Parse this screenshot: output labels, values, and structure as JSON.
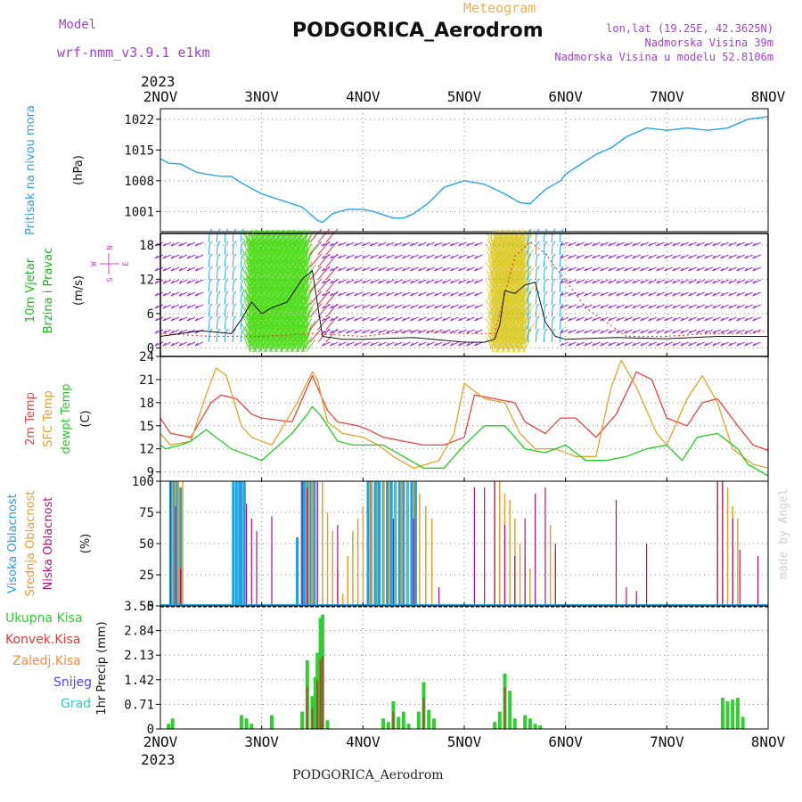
{
  "header": {
    "model_label": "Model",
    "model_value": "wrf-nmm_v3.9.1 e1km",
    "chart_kind": "Meteogram",
    "station": "PODGORICA_Aerodrom",
    "lonlat": "lon,lat (19.25E, 42.3625N)",
    "elevation": "Nadmorska Visina 39m",
    "model_elevation": "Nadmorska Visina u modelu 52.8106m",
    "credit": "made by Angel",
    "footer_station": "PODGORICA_Aerodrom"
  },
  "colors": {
    "pressure": "#29a3e6",
    "temp2m": "#ee4040",
    "sfc": "#e0a22a",
    "dew": "#22cc22",
    "high_cloud": "#1ba3e3",
    "mid_cloud": "#e0a22a",
    "low_cloud": "#b0127a",
    "precip_total": "#33cc33",
    "precip_convective": "#ee3333",
    "precip_frozen": "#ff8833",
    "snow": "#4444ff",
    "hail": "#22cccc",
    "wind_label": "#11bb11",
    "wind_dir_label": "#cc44cc",
    "header_purple": "#a040d0",
    "header_orange": "#f0b050"
  },
  "chart_data": [
    {
      "panel": "pressure",
      "type": "line",
      "ylabel": "Pritisak na nivou mora",
      "unit": "(hPa)",
      "year": "2023",
      "xticks": [
        "2NOV",
        "3NOV",
        "4NOV",
        "5NOV",
        "6NOV",
        "7NOV",
        "8NOV"
      ],
      "yticks": [
        1001,
        1008,
        1015,
        1022
      ],
      "ylim": [
        996.4,
        1024.4
      ],
      "grid": true,
      "series": [
        {
          "x": [
            0,
            0.08,
            0.2,
            0.35,
            0.45,
            0.6,
            0.7,
            0.8,
            1.0,
            1.2,
            1.4,
            1.55,
            1.6,
            1.7,
            1.85,
            2.0,
            2.1,
            2.3,
            2.4,
            2.5,
            2.65,
            2.8,
            3.0,
            3.2,
            3.4,
            3.55,
            3.65,
            3.8,
            3.95,
            4.0,
            4.1,
            4.3,
            4.45,
            4.6,
            4.8,
            5.0,
            5.2,
            5.4,
            5.6,
            5.8,
            6.0
          ],
          "values": [
            1013,
            1012,
            1011.8,
            1010,
            1009.5,
            1009,
            1009,
            1007.5,
            1005,
            1003.5,
            1002,
            999,
            998.5,
            1000.5,
            1001.5,
            1001.5,
            1001,
            999.5,
            999.5,
            1000.5,
            1003,
            1006.5,
            1008,
            1007.2,
            1005,
            1003,
            1002.8,
            1006,
            1008,
            1009.5,
            1011,
            1014,
            1015.5,
            1018,
            1020,
            1019.5,
            1020,
            1019.5,
            1020,
            1022,
            1022.6
          ]
        }
      ]
    },
    {
      "panel": "wind",
      "type": "line",
      "ylabel": "10m Vjetar Brzina i Pravac",
      "unit": "(m/s)",
      "compass": [
        "N",
        "S",
        "W",
        "E"
      ],
      "yticks": [
        0,
        6,
        12,
        18
      ],
      "ylim": [
        -1.5,
        20
      ],
      "series": [
        {
          "name": "speed",
          "x": [
            0,
            0.4,
            0.7,
            0.8,
            0.9,
            1.0,
            1.1,
            1.25,
            1.4,
            1.5,
            1.6,
            1.8,
            2.0,
            2.5,
            3.0,
            3.2,
            3.3,
            3.35,
            3.4,
            3.5,
            3.6,
            3.7,
            3.75,
            3.8,
            3.9,
            4.0,
            4.5,
            5.0,
            5.5,
            6.0
          ],
          "values": [
            2,
            3,
            2.5,
            5,
            8,
            6,
            7,
            8,
            12,
            13.5,
            2,
            1.5,
            1.5,
            1.8,
            1,
            1,
            1.5,
            4,
            10,
            9.5,
            11,
            11.5,
            8,
            4.5,
            2,
            1.5,
            1.8,
            1.6,
            2,
            2
          ]
        },
        {
          "name": "gust",
          "x": [
            0,
            0.5,
            1.0,
            1.5,
            2.0,
            2.5,
            3.0,
            3.3,
            3.5,
            3.65,
            3.8,
            4.2,
            4.6,
            5.0,
            5.4,
            5.8,
            6.0
          ],
          "values": [
            2.5,
            2,
            2,
            2.5,
            2,
            3,
            2.5,
            2.5,
            16,
            18.5,
            16.5,
            7,
            2,
            2,
            2.5,
            2.5,
            3
          ]
        }
      ],
      "barb_sections": [
        {
          "from": 0.0,
          "to": 0.45,
          "color": "violet"
        },
        {
          "from": 0.45,
          "to": 0.85,
          "color": "cyan"
        },
        {
          "from": 0.85,
          "to": 1.45,
          "color": "green"
        },
        {
          "from": 1.45,
          "to": 1.65,
          "color": "red"
        },
        {
          "from": 1.65,
          "to": 3.25,
          "color": "violet"
        },
        {
          "from": 3.25,
          "to": 3.6,
          "color": "yellow"
        },
        {
          "from": 3.6,
          "to": 4.0,
          "color": "cyan"
        },
        {
          "from": 4.0,
          "to": 6.0,
          "color": "violet"
        }
      ]
    },
    {
      "panel": "temperature",
      "type": "line",
      "ylabels": [
        "2m Temp",
        "SFC Temp",
        "dewpt Temp"
      ],
      "unit": "(C)",
      "yticks": [
        9,
        12,
        15,
        18,
        21,
        24
      ],
      "ylim": [
        7.8,
        24
      ],
      "series": [
        {
          "name": "2m Temp",
          "x": [
            0,
            0.1,
            0.3,
            0.5,
            0.6,
            0.75,
            0.9,
            1.0,
            1.3,
            1.45,
            1.5,
            1.65,
            1.75,
            1.95,
            2.05,
            2.2,
            2.4,
            2.6,
            2.8,
            3.0,
            3.1,
            3.3,
            3.5,
            3.6,
            3.8,
            3.95,
            4.1,
            4.3,
            4.5,
            4.7,
            4.85,
            5.0,
            5.2,
            5.35,
            5.5,
            5.7,
            5.85,
            6.0
          ],
          "values": [
            16,
            14,
            13.5,
            18,
            19,
            18.5,
            16.5,
            16,
            15.5,
            20,
            21.5,
            17,
            15.5,
            15,
            14.5,
            13.5,
            13,
            12.5,
            12.5,
            13.5,
            19,
            18.5,
            18,
            15.5,
            14,
            16,
            16,
            13.5,
            16.5,
            22,
            21,
            16,
            15,
            18,
            18.5,
            15,
            12.5,
            11.8
          ]
        },
        {
          "name": "SFC Temp",
          "x": [
            0,
            0.1,
            0.3,
            0.45,
            0.55,
            0.65,
            0.8,
            0.9,
            1.1,
            1.35,
            1.5,
            1.55,
            1.65,
            1.8,
            2.0,
            2.15,
            2.3,
            2.5,
            2.75,
            2.9,
            3.0,
            3.2,
            3.4,
            3.55,
            3.7,
            3.9,
            4.1,
            4.3,
            4.45,
            4.55,
            4.7,
            4.9,
            5.0,
            5.2,
            5.35,
            5.5,
            5.65,
            5.85,
            6.0
          ],
          "values": [
            14,
            12.5,
            13,
            19,
            22.5,
            21.5,
            15,
            13.5,
            12.5,
            18,
            22,
            21,
            15.5,
            14,
            13.5,
            12.5,
            11,
            9.5,
            10.5,
            14,
            20.5,
            18.5,
            18,
            14,
            12,
            12,
            11,
            11,
            20,
            23.5,
            20,
            14,
            12.5,
            18.5,
            21.5,
            18,
            12,
            10,
            9.5
          ]
        },
        {
          "name": "dewpt Temp",
          "x": [
            0,
            0.05,
            0.2,
            0.3,
            0.45,
            0.6,
            0.7,
            0.9,
            1.0,
            1.3,
            1.45,
            1.5,
            1.6,
            1.75,
            1.9,
            2.0,
            2.2,
            2.4,
            2.6,
            2.8,
            2.9,
            3.0,
            3.2,
            3.4,
            3.6,
            3.8,
            4.0,
            4.2,
            4.4,
            4.6,
            4.8,
            5.0,
            5.15,
            5.3,
            5.5,
            5.7,
            5.8,
            6.0
          ],
          "values": [
            12.5,
            12,
            12.5,
            13,
            14.5,
            13,
            12,
            11,
            10.5,
            14,
            16.5,
            17.5,
            16,
            13,
            12.5,
            12.5,
            12.5,
            11,
            9.5,
            9.5,
            11,
            12.5,
            15,
            15,
            12,
            11.5,
            12.5,
            10.5,
            10.5,
            11,
            12,
            12.5,
            10.5,
            13.5,
            14,
            12,
            10,
            8.5
          ]
        }
      ]
    },
    {
      "panel": "clouds",
      "type": "bar",
      "ylabels": [
        "Visoka Oblacnost",
        "Srednja Oblacnost",
        "Niska Oblacnost"
      ],
      "unit": "(%)",
      "yticks": [
        0,
        25,
        50,
        75,
        100
      ],
      "ylim": [
        0,
        100
      ],
      "series": [
        {
          "name": "Visoka Oblacnost",
          "x": [
            0.1,
            0.13,
            0.16,
            0.2,
            0.72,
            0.75,
            0.78,
            0.8,
            0.83,
            1.35,
            1.4,
            1.42,
            1.45,
            1.48,
            1.52,
            2.05,
            2.08,
            2.12,
            2.16,
            2.2,
            2.24,
            2.28,
            2.32,
            2.36,
            2.4,
            2.44,
            2.48,
            2.52
          ],
          "values": [
            100,
            100,
            100,
            95,
            100,
            100,
            100,
            100,
            100,
            55,
            100,
            100,
            100,
            100,
            100,
            100,
            100,
            100,
            100,
            100,
            100,
            100,
            100,
            100,
            100,
            100,
            100,
            100
          ]
        },
        {
          "name": "Srednja Oblacnost",
          "x": [
            0.12,
            0.15,
            0.18,
            0.22,
            1.44,
            1.47,
            1.5,
            1.55,
            1.6,
            1.65,
            1.7,
            1.75,
            1.8,
            1.85,
            1.9,
            1.95,
            2.0,
            2.08,
            2.14,
            2.2,
            2.26,
            2.32,
            2.38,
            2.44,
            2.5,
            2.56,
            2.62,
            2.68,
            3.3,
            3.35,
            3.4,
            3.45,
            3.5,
            3.55,
            3.6,
            3.65,
            3.85,
            3.9,
            5.5,
            5.55,
            5.6,
            5.65,
            5.7
          ],
          "values": [
            100,
            100,
            100,
            100,
            100,
            100,
            100,
            100,
            100,
            75,
            60,
            30,
            10,
            40,
            60,
            70,
            80,
            100,
            100,
            100,
            100,
            100,
            100,
            100,
            100,
            90,
            80,
            70,
            100,
            100,
            90,
            85,
            70,
            50,
            40,
            30,
            65,
            45,
            100,
            100,
            95,
            80,
            70
          ]
        },
        {
          "name": "Niska Oblacnost",
          "x": [
            0.1,
            0.15,
            0.2,
            0.85,
            0.9,
            0.95,
            1.1,
            1.4,
            1.45,
            1.55,
            1.75,
            2.3,
            2.5,
            2.75,
            3.1,
            3.2,
            3.3,
            3.4,
            3.5,
            3.6,
            3.7,
            3.8,
            3.9,
            4.5,
            4.6,
            4.7,
            4.8,
            5.5,
            5.55,
            5.65,
            5.72,
            5.9
          ],
          "values": [
            100,
            80,
            30,
            82,
            70,
            60,
            72,
            100,
            95,
            100,
            65,
            70,
            70,
            15,
            95,
            95,
            100,
            65,
            40,
            70,
            90,
            95,
            50,
            85,
            15,
            12,
            50,
            100,
            100,
            70,
            45,
            40
          ]
        }
      ]
    },
    {
      "panel": "precip",
      "type": "bar",
      "ylabels": [
        "Ukupna Kisa",
        "Konvek.Kisa",
        "Zaledj.Kisa",
        "Snijeg",
        "Grad"
      ],
      "unit": "1hr Precip (mm)",
      "yticks": [
        0,
        0.71,
        1.42,
        2.13,
        2.84,
        3.55
      ],
      "ylim": [
        0,
        3.55
      ],
      "series": [
        {
          "name": "Ukupna Kisa",
          "x": [
            0.08,
            0.12,
            0.8,
            0.85,
            0.9,
            1.1,
            1.4,
            1.45,
            1.5,
            1.53,
            1.55,
            1.58,
            1.6,
            1.65,
            2.2,
            2.25,
            2.3,
            2.35,
            2.4,
            2.45,
            2.55,
            2.6,
            2.65,
            2.7,
            3.3,
            3.35,
            3.4,
            3.45,
            3.5,
            3.6,
            3.65,
            3.7,
            3.75,
            5.55,
            5.6,
            5.65,
            5.7,
            5.75
          ],
          "values": [
            0.15,
            0.3,
            0.4,
            0.3,
            0.15,
            0.4,
            0.5,
            1.98,
            0.95,
            1.5,
            2.2,
            3.2,
            3.3,
            0.25,
            0.3,
            0.2,
            0.8,
            0.35,
            0.5,
            0.15,
            0.5,
            1.35,
            0.55,
            0.3,
            0.2,
            0.5,
            1.6,
            1.1,
            0.3,
            0.4,
            0.3,
            0.15,
            0.1,
            0.9,
            0.8,
            0.85,
            0.9,
            0.35
          ]
        },
        {
          "name": "Konvek.Kisa",
          "x": [
            1.45,
            1.5,
            1.55,
            1.58,
            1.6,
            2.3,
            2.6,
            3.4
          ],
          "values": [
            1.2,
            0.6,
            1.4,
            2.0,
            2.1,
            0.5,
            0.9,
            1.2
          ]
        },
        {
          "name": "Zaledj.Kisa",
          "x": [],
          "values": []
        },
        {
          "name": "Snijeg",
          "x": [],
          "values": []
        },
        {
          "name": "Grad",
          "x": [],
          "values": []
        }
      ]
    }
  ]
}
